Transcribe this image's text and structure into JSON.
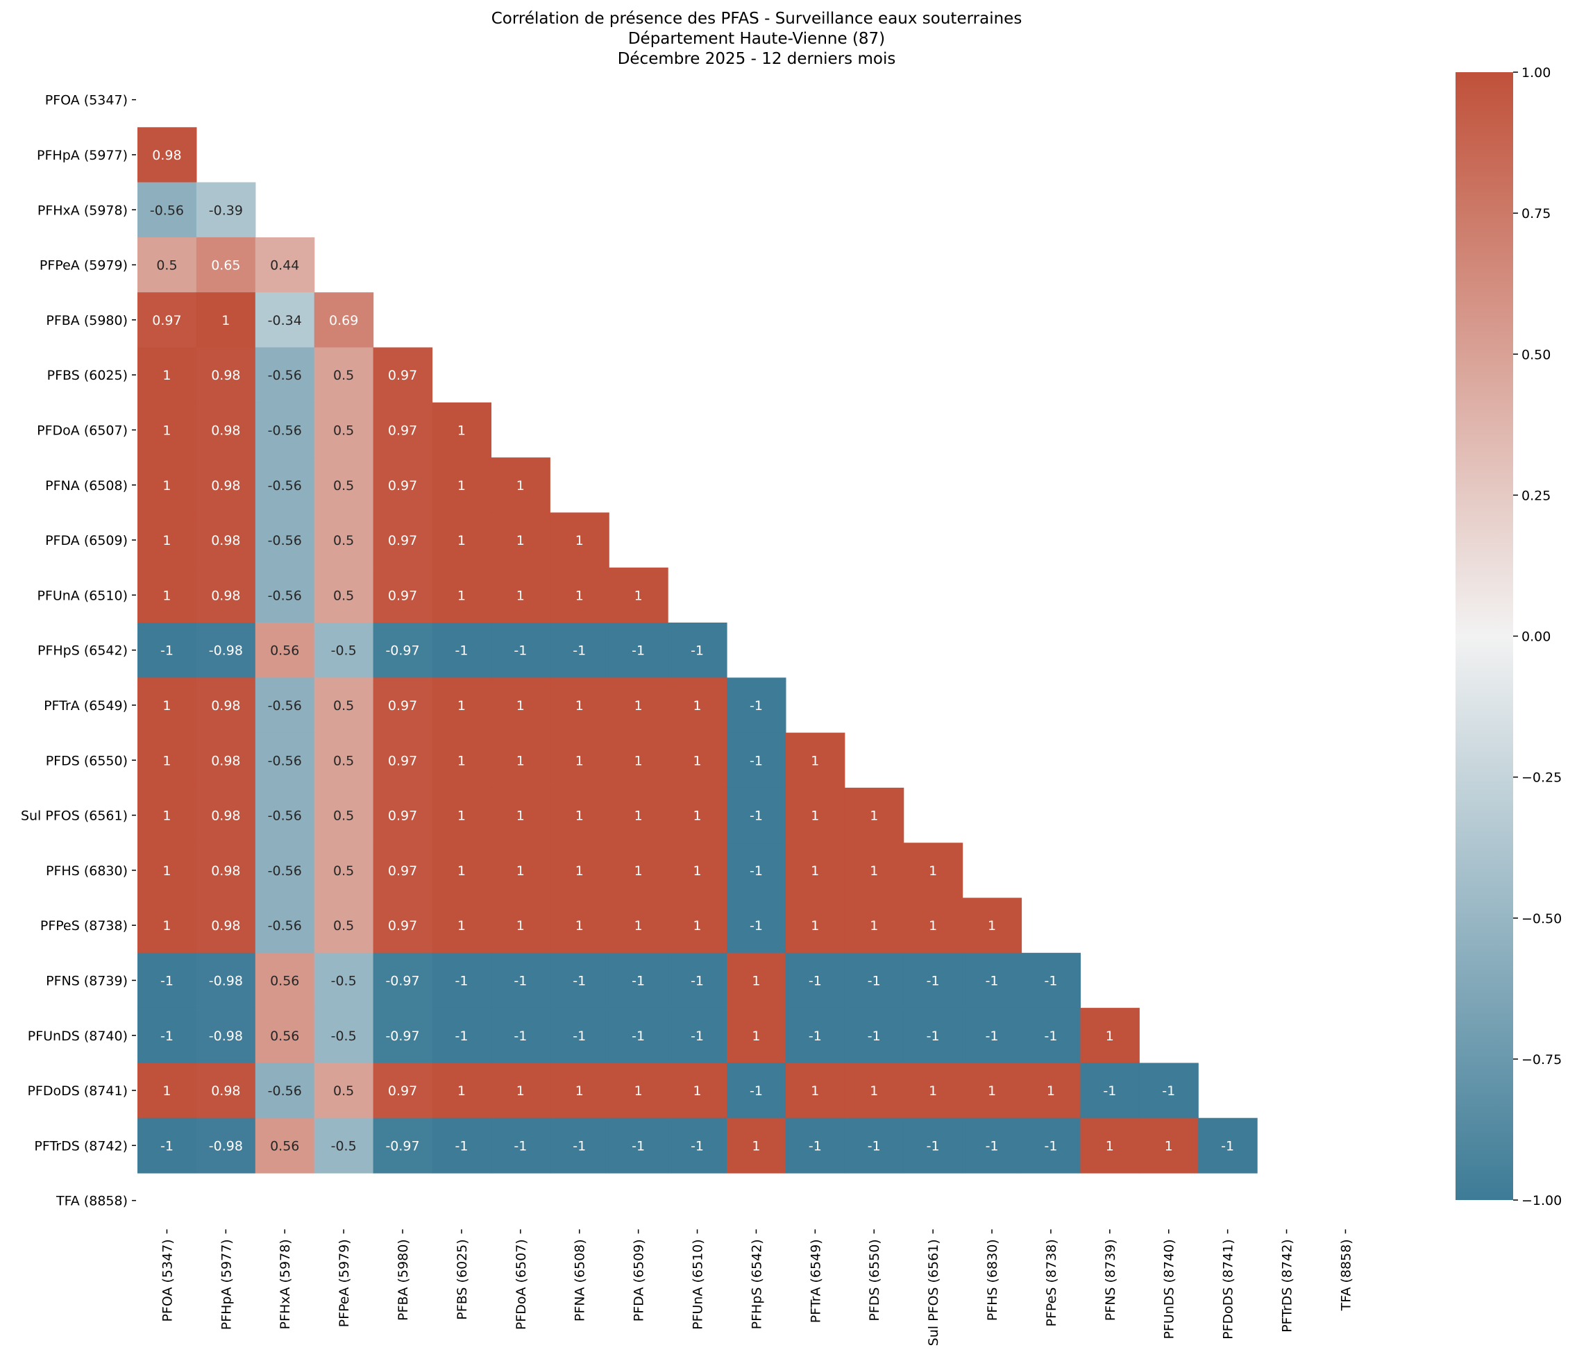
{
  "chart_data": {
    "type": "heatmap",
    "title_lines": [
      "Corrélation de présence des PFAS - Surveillance eaux souterraines",
      "Département Haute-Vienne (87)",
      "Décembre 2025 - 12 derniers mois"
    ],
    "xlabel": "",
    "ylabel": "",
    "labels": [
      "PFOA (5347)",
      "PFHpA (5977)",
      "PFHxA (5978)",
      "PFPeA (5979)",
      "PFBA (5980)",
      "PFBS (6025)",
      "PFDoA (6507)",
      "PFNA (6508)",
      "PFDA (6509)",
      "PFUnA (6510)",
      "PFHpS (6542)",
      "PFTrA (6549)",
      "PFDS (6550)",
      "Sul PFOS (6561)",
      "PFHS (6830)",
      "PFPeS (8738)",
      "PFNS (8739)",
      "PFUnDS (8740)",
      "PFDoDS (8741)",
      "PFTrDS (8742)",
      "TFA (8858)"
    ],
    "matrix_lower": [
      [],
      [
        0.98
      ],
      [
        -0.56,
        -0.39
      ],
      [
        0.5,
        0.65,
        0.44
      ],
      [
        0.97,
        1,
        -0.34,
        0.69
      ],
      [
        1,
        0.98,
        -0.56,
        0.5,
        0.97
      ],
      [
        1,
        0.98,
        -0.56,
        0.5,
        0.97,
        1
      ],
      [
        1,
        0.98,
        -0.56,
        0.5,
        0.97,
        1,
        1
      ],
      [
        1,
        0.98,
        -0.56,
        0.5,
        0.97,
        1,
        1,
        1
      ],
      [
        1,
        0.98,
        -0.56,
        0.5,
        0.97,
        1,
        1,
        1,
        1
      ],
      [
        -1,
        -0.98,
        0.56,
        -0.5,
        -0.97,
        -1,
        -1,
        -1,
        -1,
        -1
      ],
      [
        1,
        0.98,
        -0.56,
        0.5,
        0.97,
        1,
        1,
        1,
        1,
        1,
        -1
      ],
      [
        1,
        0.98,
        -0.56,
        0.5,
        0.97,
        1,
        1,
        1,
        1,
        1,
        -1,
        1
      ],
      [
        1,
        0.98,
        -0.56,
        0.5,
        0.97,
        1,
        1,
        1,
        1,
        1,
        -1,
        1,
        1
      ],
      [
        1,
        0.98,
        -0.56,
        0.5,
        0.97,
        1,
        1,
        1,
        1,
        1,
        -1,
        1,
        1,
        1
      ],
      [
        1,
        0.98,
        -0.56,
        0.5,
        0.97,
        1,
        1,
        1,
        1,
        1,
        -1,
        1,
        1,
        1,
        1
      ],
      [
        -1,
        -0.98,
        0.56,
        -0.5,
        -0.97,
        -1,
        -1,
        -1,
        -1,
        -1,
        1,
        -1,
        -1,
        -1,
        -1,
        -1
      ],
      [
        -1,
        -0.98,
        0.56,
        -0.5,
        -0.97,
        -1,
        -1,
        -1,
        -1,
        -1,
        1,
        -1,
        -1,
        -1,
        -1,
        -1,
        1
      ],
      [
        1,
        0.98,
        -0.56,
        0.5,
        0.97,
        1,
        1,
        1,
        1,
        1,
        -1,
        1,
        1,
        1,
        1,
        1,
        -1,
        -1
      ],
      [
        -1,
        -0.98,
        0.56,
        -0.5,
        -0.97,
        -1,
        -1,
        -1,
        -1,
        -1,
        1,
        -1,
        -1,
        -1,
        -1,
        -1,
        1,
        1,
        -1
      ],
      []
    ],
    "colorbar": {
      "vmin": -1,
      "vmax": 1,
      "ticks": [
        "1.00",
        "0.75",
        "0.50",
        "0.25",
        "0.00",
        "−0.25",
        "−0.50",
        "−0.75",
        "−1.00"
      ],
      "tick_values": [
        1,
        0.75,
        0.5,
        0.25,
        0,
        -0.25,
        -0.5,
        -0.75,
        -1
      ]
    },
    "colormap": {
      "negative": "#3d7b96",
      "center": "#f2f2f2",
      "positive": "#c0513a"
    },
    "mask": "upper-triangle-and-diagonal",
    "grid": false
  }
}
